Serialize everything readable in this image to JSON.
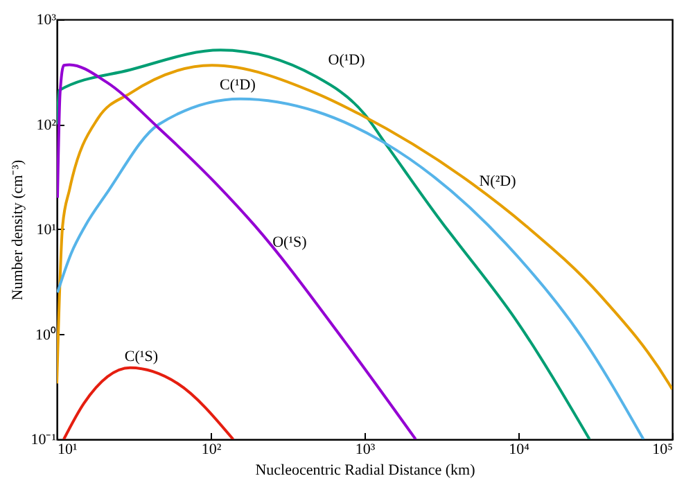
{
  "chart_data": {
    "type": "line",
    "xlabel": "Nucleocentric Radial Distance (km)",
    "ylabel": "Number density (cm⁻³)",
    "log": "xy",
    "grid": false,
    "legend": false,
    "marker": "none",
    "line_style": "solid",
    "xlim": [
      10,
      100000
    ],
    "ylim": [
      0.1,
      1000
    ],
    "xticks": [
      {
        "value": 10,
        "label": "10¹"
      },
      {
        "value": 100,
        "label": "10²"
      },
      {
        "value": 1000,
        "label": "10³"
      },
      {
        "value": 10000,
        "label": "10⁴"
      },
      {
        "value": 100000,
        "label": "10⁵"
      }
    ],
    "yticks": [
      {
        "value": 0.1,
        "label": "10⁻¹"
      },
      {
        "value": 1,
        "label": "10⁰"
      },
      {
        "value": 10,
        "label": "10¹"
      },
      {
        "value": 100,
        "label": "10²"
      },
      {
        "value": 1000,
        "label": "10³"
      }
    ],
    "series": [
      {
        "name": "O(¹D)",
        "color": "#009e73",
        "x": [
          10.1,
          10.3,
          30,
          116,
          484,
          1000,
          1406,
          3310,
          4070,
          9550,
          29000
        ],
        "values": [
          100,
          210,
          331,
          510,
          285,
          125,
          62,
          10.8,
          7.3,
          1.4,
          0.1
        ]
      },
      {
        "name": "N(²D)",
        "color": "#e69f00",
        "x": [
          10,
          10.9,
          12.1,
          18.5,
          30,
          102,
          484,
          930,
          5040,
          11200,
          34500,
          95000,
          100000
        ],
        "values": [
          0.34,
          10.8,
          24,
          114,
          198,
          365,
          198,
          125,
          27,
          10.8,
          2.3,
          0.34,
          0.3
        ]
      },
      {
        "name": "C(¹D)",
        "color": "#56b4e9",
        "x": [
          10.1,
          12.4,
          15.3,
          21,
          46,
          156,
          484,
          1320,
          8300,
          26000,
          65000
        ],
        "values": [
          2.5,
          5.9,
          10.8,
          21.8,
          100,
          175,
          133,
          68,
          7.3,
          0.93,
          0.1
        ]
      },
      {
        "name": "O(¹S)",
        "color": "#9400d3",
        "x": [
          10.1,
          10.5,
          11.1,
          12.1,
          21,
          46,
          109,
          194,
          740,
          2150
        ],
        "values": [
          20,
          200,
          365,
          370,
          253,
          92,
          27,
          10.8,
          0.86,
          0.1
        ]
      },
      {
        "name": "C(¹S)",
        "color": "#e51e10",
        "x": [
          11.1,
          15,
          30,
          61,
          140
        ],
        "values": [
          0.1,
          0.22,
          0.48,
          0.34,
          0.1
        ]
      }
    ]
  }
}
